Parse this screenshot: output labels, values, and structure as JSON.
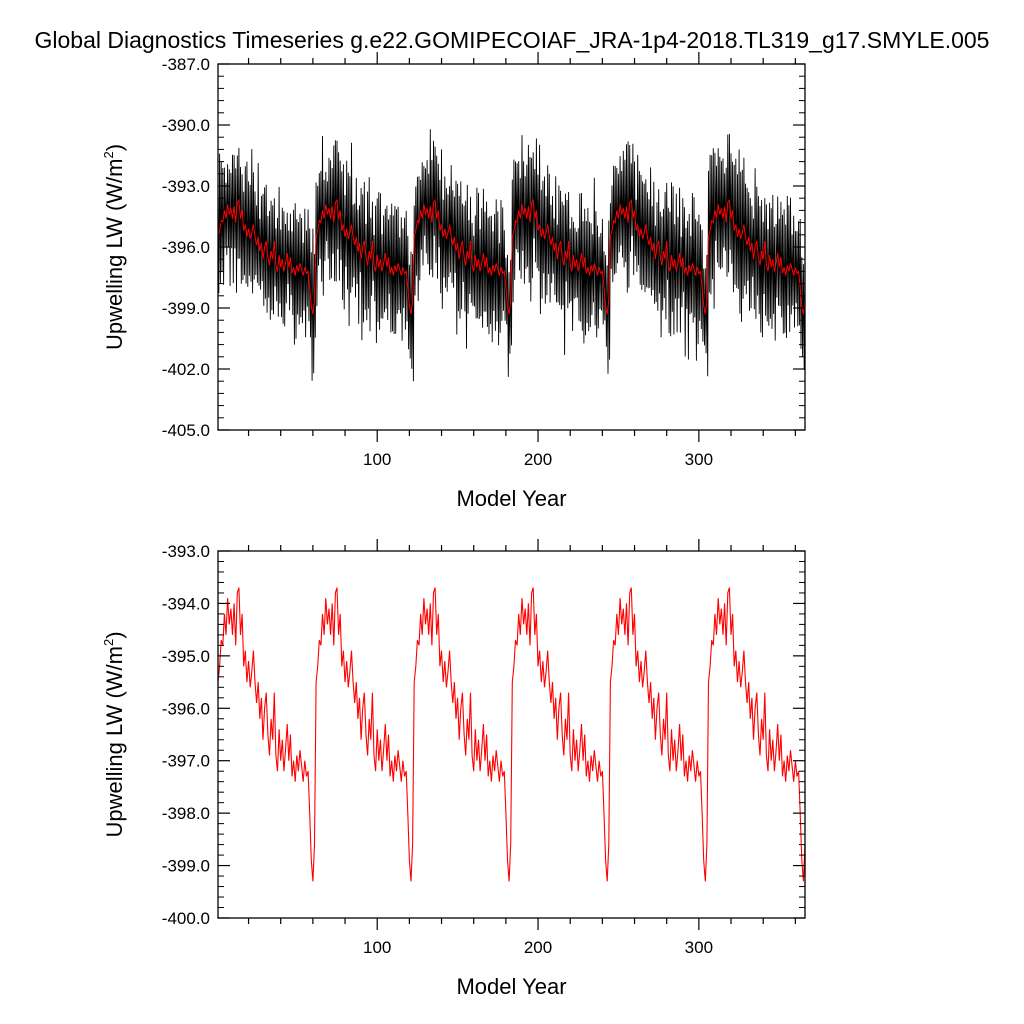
{
  "figure": {
    "title": "Global Diagnostics Timeseries g.e22.GOMIPECOIAF_JRA-1p4-2018.TL319_g17.SMYLE.005"
  },
  "chart_data": [
    {
      "type": "line",
      "xlabel": "Model Year",
      "ylabel": "Upwelling LW (W/m²)",
      "ylabel_main": "Upwelling LW (W/m",
      "ylabel_sup": "2",
      "ylabel_end": ")",
      "xlim": [
        1,
        366
      ],
      "ylim": [
        -405.0,
        -387.0
      ],
      "xticks": [
        100,
        200,
        300
      ],
      "yticks": [
        -405.0,
        -402.0,
        -399.0,
        -396.0,
        -393.0,
        -390.0,
        -387.0
      ],
      "ytick_labels": [
        "-405.0",
        "-402.0",
        "-399.0",
        "-396.0",
        "-393.0",
        "-390.0",
        "-387.0"
      ],
      "series": [
        {
          "color": "#000000",
          "description": "high-frequency raw global series, oscillating roughly ±3 W/m² around the smoothed mean; six cycles each ~61 years long, jumping from about -399.3 to about -393.5 at each cycle start and declining to about -397.5",
          "cycle_length": 61,
          "cycle_starts": [
            1,
            62,
            123,
            184,
            245,
            306
          ],
          "envelope_max": [
            -389.5,
            -392.5
          ],
          "envelope_min": [
            -403.2,
            -398.0
          ]
        },
        {
          "color": "#ff0000",
          "description": "smoothed annual mean, same as the lower panel",
          "range": [
            -399.3,
            -393.7
          ]
        }
      ]
    },
    {
      "type": "line",
      "xlabel": "Model Year",
      "ylabel": "Upwelling LW (W/m²)",
      "ylabel_main": "Upwelling LW (W/m",
      "ylabel_sup": "2",
      "ylabel_end": ")",
      "xlim": [
        1,
        366
      ],
      "ylim": [
        -400.0,
        -393.0
      ],
      "xticks": [
        100,
        200,
        300
      ],
      "yticks": [
        -400.0,
        -399.0,
        -398.0,
        -397.0,
        -396.0,
        -395.0,
        -394.0,
        -393.0
      ],
      "ytick_labels": [
        "-400.0",
        "-399.0",
        "-398.0",
        "-397.0",
        "-396.0",
        "-395.0",
        "-394.0",
        "-393.0"
      ],
      "series": [
        {
          "color": "#ff0000",
          "cycle_length": 61,
          "cycle_starts": [
            1,
            62,
            123,
            184,
            245,
            306
          ],
          "cycle_values": [
            -395.5,
            -395.2,
            -394.7,
            -394.8,
            -394.2,
            -394.6,
            -393.9,
            -394.4,
            -394.1,
            -394.6,
            -394.0,
            -394.8,
            -393.8,
            -393.7,
            -394.6,
            -394.2,
            -395.2,
            -394.9,
            -395.5,
            -395.1,
            -395.6,
            -395.3,
            -394.9,
            -395.5,
            -395.9,
            -395.5,
            -396.2,
            -395.8,
            -396.6,
            -396.0,
            -395.7,
            -396.5,
            -396.9,
            -396.2,
            -396.6,
            -395.7,
            -396.9,
            -397.2,
            -396.4,
            -397.0,
            -396.6,
            -397.2,
            -396.8,
            -396.3,
            -397.0,
            -396.5,
            -397.3,
            -397.0,
            -397.4,
            -396.9,
            -397.2,
            -396.8,
            -397.1,
            -397.4,
            -397.0,
            -397.3,
            -397.2,
            -398.0,
            -398.9,
            -399.3,
            -398.6
          ]
        }
      ]
    }
  ]
}
